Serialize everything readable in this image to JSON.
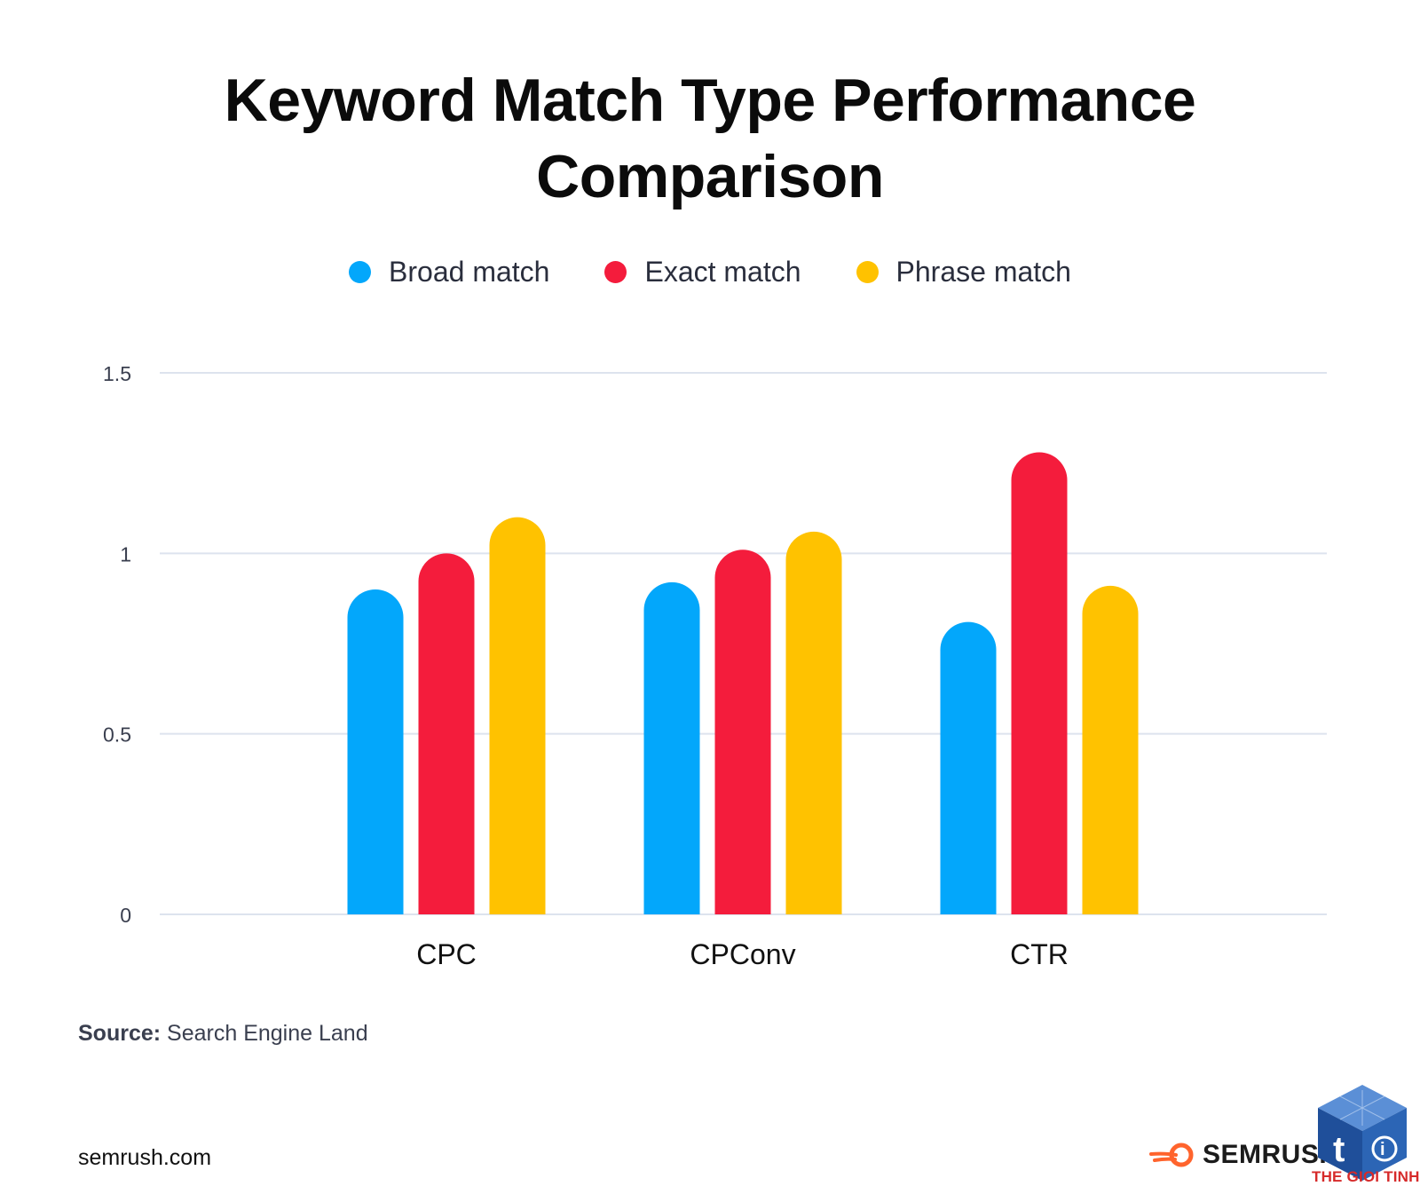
{
  "chart_data": {
    "type": "bar",
    "title": "Keyword Match Type Performance Comparison",
    "title_lines": [
      "Keyword Match Type Performance",
      "Comparison"
    ],
    "categories": [
      "CPC",
      "CPConv",
      "CTR"
    ],
    "series": [
      {
        "name": "Broad match",
        "color": "#03a7fb",
        "values": [
          0.9,
          0.92,
          0.81
        ]
      },
      {
        "name": "Exact match",
        "color": "#f41c3c",
        "values": [
          1.0,
          1.01,
          1.28
        ]
      },
      {
        "name": "Phrase match",
        "color": "#ffc200",
        "values": [
          1.1,
          1.06,
          0.91
        ]
      }
    ],
    "ylim": [
      0,
      1.5
    ],
    "yticks": [
      {
        "value": 0,
        "label": "0"
      },
      {
        "value": 0.5,
        "label": "0.5"
      },
      {
        "value": 1,
        "label": "1"
      },
      {
        "value": 1.5,
        "label": "1.5"
      }
    ],
    "grid": true,
    "legend_position": "top-center",
    "xlabel": "",
    "ylabel": ""
  },
  "source": {
    "label": "Source:",
    "value": "Search Engine Land"
  },
  "footer": {
    "url": "semrush.com",
    "brand": "SEMRUSH",
    "brand_icon": "semrush-flame-icon"
  },
  "watermark": {
    "text": "THE GIOI TINHOC",
    "icon": "cube-logo-icon"
  }
}
